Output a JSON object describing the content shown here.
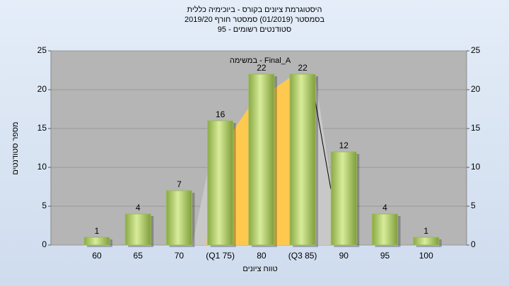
{
  "chart_data": {
    "type": "bar",
    "title": "היסטוגרמת ציונים בקורס - ביוכימיה כללית",
    "subtitle": [
      "בסמסטר (01/2019) סמסטר חורף 2019/20",
      "סטודנטים רשומים - 95"
    ],
    "annotation": "במשימה - Final_A",
    "x_label": "טווח ציונים",
    "y_label": "מספר סטודנטים",
    "categories": [
      "60",
      "65",
      "70",
      "(Q1 75)",
      "80",
      "(Q3 85)",
      "90",
      "95",
      "100"
    ],
    "values": [
      1,
      4,
      7,
      16,
      22,
      22,
      12,
      4,
      1
    ],
    "color": "#9bbb59",
    "ylim": [
      0,
      25
    ],
    "yticks": [
      0,
      5,
      10,
      15,
      20,
      25
    ],
    "y2lim": [
      0,
      25
    ],
    "y2ticks": [
      0,
      5,
      10,
      15,
      20,
      25
    ],
    "grid": true
  }
}
